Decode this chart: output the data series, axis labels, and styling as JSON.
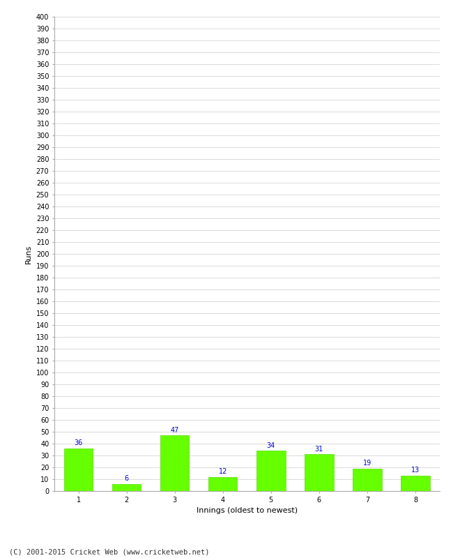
{
  "title": "",
  "categories": [
    "1",
    "2",
    "3",
    "4",
    "5",
    "6",
    "7",
    "8"
  ],
  "values": [
    36,
    6,
    47,
    12,
    34,
    31,
    19,
    13
  ],
  "bar_color": "#66ff00",
  "bar_edge_color": "#55dd00",
  "label_color": "#0000cc",
  "xlabel": "Innings (oldest to newest)",
  "ylabel": "Runs",
  "ylim": [
    0,
    400
  ],
  "ytick_step": 10,
  "grid_color": "#cccccc",
  "bg_color": "#ffffff",
  "footer": "(C) 2001-2015 Cricket Web (www.cricketweb.net)",
  "label_fontsize": 7,
  "axis_label_fontsize": 8,
  "tick_fontsize": 7,
  "footer_fontsize": 7.5
}
